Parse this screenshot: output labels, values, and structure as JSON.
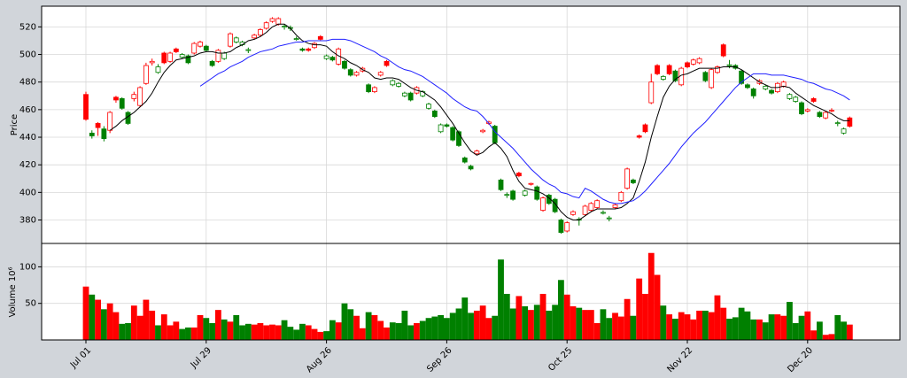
{
  "chart_data": {
    "type": "candlestick",
    "y_label": "Price",
    "volume_label": "Volume  10⁶",
    "categories": [
      "Jul 01",
      null,
      null,
      null,
      null,
      null,
      null,
      null,
      null,
      null,
      null,
      null,
      null,
      null,
      null,
      null,
      null,
      null,
      null,
      null,
      "Jul 29",
      null,
      null,
      null,
      null,
      null,
      null,
      null,
      null,
      null,
      null,
      null,
      null,
      null,
      null,
      null,
      null,
      null,
      null,
      null,
      "Aug 26",
      null,
      null,
      null,
      null,
      null,
      null,
      null,
      null,
      null,
      null,
      null,
      null,
      null,
      null,
      null,
      null,
      null,
      null,
      null,
      "Sep 26",
      null,
      null,
      null,
      null,
      null,
      null,
      null,
      null,
      null,
      null,
      null,
      null,
      null,
      null,
      null,
      null,
      null,
      null,
      null,
      "Oct 25",
      null,
      null,
      null,
      null,
      null,
      null,
      null,
      null,
      null,
      null,
      null,
      null,
      null,
      null,
      null,
      null,
      null,
      null,
      null,
      "Nov 22",
      null,
      null,
      null,
      null,
      null,
      null,
      null,
      null,
      null,
      null,
      null,
      null,
      null,
      null,
      null,
      null,
      null,
      null,
      null,
      "Dec 20",
      null,
      null,
      null,
      null,
      null,
      null,
      null
    ],
    "open": [
      471,
      443,
      450,
      446,
      445,
      469,
      468,
      458,
      468,
      463,
      479,
      494,
      487,
      501,
      495,
      504,
      498,
      499,
      501,
      506,
      506,
      495,
      495,
      497,
      506,
      509,
      507,
      503,
      512,
      514,
      519,
      524,
      522,
      520,
      519,
      511,
      504,
      504,
      505,
      513,
      497,
      498,
      493,
      495,
      489,
      485,
      488,
      478,
      473,
      485,
      495,
      478,
      477,
      470,
      472,
      472,
      470,
      461,
      459,
      444,
      449,
      447,
      444,
      425,
      419,
      428,
      444,
      450,
      448,
      409,
      398,
      401,
      414,
      398,
      406,
      404,
      387,
      398,
      395,
      380,
      372,
      384,
      380,
      384,
      387,
      389,
      385,
      381,
      389,
      394,
      403,
      409,
      441,
      449,
      465,
      492,
      482,
      492,
      488,
      478,
      494,
      493,
      494,
      487,
      476,
      487,
      507,
      492,
      492,
      488,
      478,
      475,
      479,
      475,
      474,
      473,
      477,
      468,
      466,
      465,
      459,
      468,
      458,
      454,
      459,
      450,
      443,
      454
    ],
    "high": [
      473,
      445,
      451,
      448,
      459,
      470,
      469,
      459,
      473,
      477,
      494,
      497,
      493,
      502,
      502,
      505,
      501,
      500,
      509,
      510,
      507,
      496,
      504,
      502,
      516,
      513,
      510,
      505,
      515,
      519,
      524,
      527,
      527,
      522,
      521,
      513,
      505,
      505,
      509,
      514,
      500,
      499,
      505,
      496,
      490,
      488,
      491,
      479,
      477,
      488,
      496,
      482,
      480,
      473,
      473,
      477,
      474,
      465,
      460,
      450,
      450,
      448,
      445,
      426,
      420,
      431,
      446,
      452,
      449,
      410,
      400,
      402,
      415,
      402,
      407,
      405,
      397,
      399,
      396,
      381,
      379,
      387,
      382,
      391,
      393,
      395,
      387,
      383,
      392,
      401,
      418,
      410,
      442,
      450,
      486,
      493,
      485,
      493,
      489,
      491,
      495,
      497,
      498,
      488,
      490,
      492,
      508,
      496,
      493,
      489,
      479,
      476,
      482,
      478,
      475,
      480,
      481,
      472,
      470,
      466,
      461,
      469,
      459,
      459,
      461,
      452,
      447,
      455
    ],
    "low": [
      452,
      439,
      441,
      437,
      443,
      465,
      460,
      449,
      466,
      462,
      478,
      492,
      486,
      493,
      494,
      501,
      497,
      493,
      500,
      505,
      502,
      491,
      494,
      496,
      505,
      508,
      506,
      501,
      511,
      513,
      518,
      523,
      521,
      518,
      517,
      510,
      502,
      502,
      504,
      510,
      496,
      495,
      492,
      489,
      484,
      484,
      487,
      472,
      472,
      484,
      491,
      477,
      476,
      469,
      466,
      471,
      469,
      460,
      454,
      443,
      447,
      437,
      433,
      421,
      416,
      427,
      443,
      449,
      435,
      401,
      396,
      394,
      411,
      397,
      405,
      394,
      386,
      391,
      385,
      370,
      371,
      383,
      376,
      383,
      386,
      388,
      384,
      379,
      388,
      393,
      402,
      406,
      439,
      443,
      464,
      485,
      481,
      485,
      480,
      477,
      490,
      492,
      493,
      480,
      475,
      486,
      498,
      490,
      489,
      478,
      475,
      468,
      478,
      474,
      471,
      472,
      476,
      467,
      465,
      456,
      458,
      465,
      454,
      453,
      458,
      448,
      442,
      447
    ],
    "close": [
      453,
      441,
      447,
      439,
      458,
      467,
      461,
      450,
      471,
      476,
      492,
      495,
      491,
      494,
      501,
      502,
      500,
      494,
      508,
      509,
      503,
      492,
      503,
      501,
      515,
      512,
      509,
      503.5,
      514,
      518,
      523,
      526,
      526,
      520.5,
      519.5,
      511.5,
      503,
      503,
      508,
      511,
      499,
      496,
      504,
      490,
      485,
      487,
      490,
      473,
      476,
      487,
      492,
      481,
      479,
      472,
      467,
      476,
      473,
      464,
      455,
      449,
      448,
      438,
      434,
      422,
      417,
      430,
      445,
      451,
      436,
      402,
      398.5,
      395,
      412,
      401,
      406.5,
      395,
      396,
      392,
      386,
      371,
      378,
      386,
      380.5,
      390,
      392,
      394,
      385.5,
      381.5,
      391,
      400,
      417,
      407,
      440,
      444,
      480,
      486,
      484,
      486,
      481,
      490,
      491,
      496,
      497,
      481,
      489,
      491,
      499,
      492.5,
      490,
      479,
      476,
      470,
      481,
      477,
      472,
      479,
      480,
      471,
      469,
      457,
      460,
      466,
      455,
      458,
      459.5,
      450.5,
      446,
      448
    ],
    "volume": [
      73,
      62,
      55,
      42,
      50,
      38,
      22,
      23,
      47,
      33,
      55,
      40,
      20,
      35,
      20,
      25,
      15,
      17,
      17,
      34,
      30,
      23,
      41,
      28,
      25,
      34,
      20,
      22,
      21,
      23,
      20,
      21,
      20,
      27,
      18,
      14,
      22,
      20,
      15,
      11,
      12,
      27,
      24,
      50,
      42,
      33,
      16,
      38,
      34,
      26,
      17,
      24,
      23,
      40,
      20,
      23,
      26,
      30,
      32,
      34,
      30,
      37,
      43,
      58,
      37,
      40,
      47,
      30,
      33,
      110,
      63,
      43,
      60,
      46,
      41,
      48,
      63,
      40,
      48,
      82,
      62,
      46,
      44,
      41,
      41,
      23,
      42,
      30,
      37,
      32,
      56,
      33,
      84,
      63,
      119,
      89,
      47,
      35,
      29,
      38,
      35,
      28,
      40,
      40,
      38,
      61,
      44,
      29,
      31,
      44,
      39,
      28,
      28,
      24,
      35,
      35,
      33,
      52,
      23,
      33,
      39,
      13,
      25,
      7,
      8,
      34,
      25,
      21
    ],
    "moving_averages": [
      {
        "color": "#000000",
        "values": [
          null,
          null,
          null,
          null,
          445,
          448,
          452,
          455,
          458,
          462,
          466,
          472,
          480,
          487,
          492,
          496,
          497,
          498,
          499,
          501,
          502,
          502,
          501,
          501,
          502,
          505,
          507,
          510,
          511,
          513,
          516,
          520,
          522,
          522,
          519,
          514,
          510,
          508,
          507,
          507,
          506,
          502,
          499,
          497,
          494,
          492,
          489,
          487,
          483,
          482,
          483,
          483,
          482,
          479,
          476,
          474,
          473,
          470,
          467,
          462,
          456,
          450,
          443,
          436,
          430,
          427,
          429,
          433,
          436,
          432,
          426,
          416,
          408,
          403,
          402,
          401,
          399,
          396,
          392,
          386,
          382,
          380,
          380,
          383,
          386,
          388,
          388,
          388,
          388,
          389,
          392,
          396,
          408,
          422,
          440,
          455,
          469,
          477,
          482,
          485,
          486,
          488,
          490,
          490,
          490,
          490,
          491,
          491,
          491,
          489,
          486,
          483,
          480,
          478,
          476,
          476,
          477,
          476,
          472,
          469,
          466,
          463,
          461,
          459,
          457,
          454,
          452,
          452
        ]
      },
      {
        "color": "#1f1fff",
        "values": [
          null,
          null,
          null,
          null,
          null,
          null,
          null,
          null,
          null,
          null,
          null,
          null,
          null,
          null,
          null,
          null,
          null,
          null,
          null,
          477,
          480,
          483,
          486,
          488,
          491,
          493,
          495,
          498,
          500,
          502,
          503,
          504,
          506,
          507,
          508,
          509,
          509,
          510,
          510,
          510,
          510,
          511,
          511,
          511,
          510,
          508,
          506,
          504,
          502,
          499,
          497,
          494,
          491,
          489,
          488,
          486,
          484,
          481,
          478,
          475,
          472,
          468,
          465,
          462,
          460,
          459,
          455,
          450,
          444,
          440,
          436,
          432,
          427,
          422,
          417,
          413,
          409,
          406,
          404,
          400,
          399,
          397,
          396,
          403,
          401,
          398,
          395,
          393,
          392,
          392,
          393,
          394,
          397,
          401,
          406,
          411,
          416,
          421,
          427,
          433,
          438,
          443,
          447,
          451,
          456,
          461,
          466,
          471,
          476,
          480,
          483,
          486,
          486,
          486,
          485,
          485,
          485,
          484,
          483,
          482,
          480,
          479,
          477,
          475,
          474,
          472,
          470,
          467
        ]
      }
    ],
    "up_color": "#ff0000",
    "down_color": "#008000",
    "ylim": [
      363,
      535
    ],
    "yticks": [
      380,
      400,
      420,
      440,
      460,
      480,
      500,
      520
    ],
    "volume_ylim": [
      0,
      132
    ],
    "volume_yticks": [
      50,
      100
    ],
    "grid": true
  }
}
